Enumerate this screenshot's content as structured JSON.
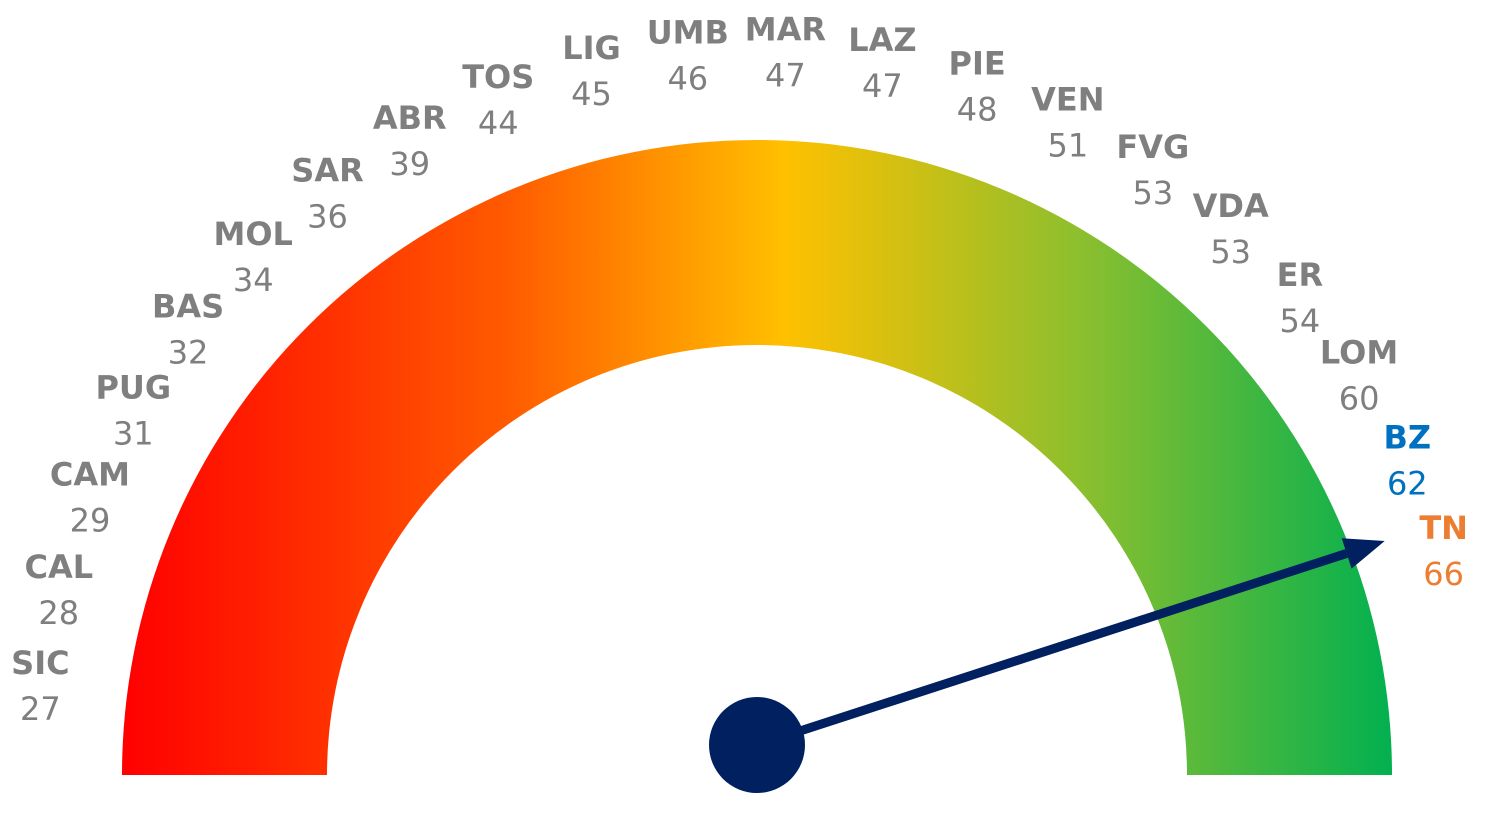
{
  "chart_data": {
    "type": "gauge",
    "categories": [
      "SIC",
      "CAL",
      "CAM",
      "PUG",
      "BAS",
      "MOL",
      "SAR",
      "ABR",
      "TOS",
      "LIG",
      "UMB",
      "MAR",
      "LAZ",
      "PIE",
      "VEN",
      "FVG",
      "VDA",
      "ER",
      "LOM",
      "BZ",
      "TN"
    ],
    "values": [
      27,
      28,
      29,
      31,
      32,
      34,
      36,
      39,
      44,
      45,
      46,
      47,
      47,
      48,
      51,
      53,
      53,
      54,
      60,
      62,
      66
    ],
    "colors": [
      "#7f7f7f",
      "#7f7f7f",
      "#7f7f7f",
      "#7f7f7f",
      "#7f7f7f",
      "#7f7f7f",
      "#7f7f7f",
      "#7f7f7f",
      "#7f7f7f",
      "#7f7f7f",
      "#7f7f7f",
      "#7f7f7f",
      "#7f7f7f",
      "#7f7f7f",
      "#7f7f7f",
      "#7f7f7f",
      "#7f7f7f",
      "#7f7f7f",
      "#7f7f7f",
      "#0070c0",
      "#ed7d31"
    ],
    "needle_color": "#002060"
  }
}
